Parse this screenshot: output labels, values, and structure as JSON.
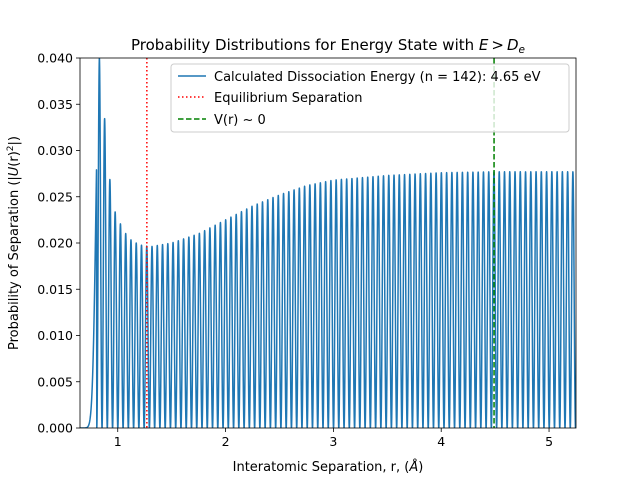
{
  "chart_data": {
    "type": "line",
    "title": "Probability Distributions for Energy State with E > De",
    "title_parts": {
      "prefix": "Probability Distributions for Energy State with ",
      "math_E": "E",
      "math_gt": ">",
      "math_D": "D",
      "math_sub": "e"
    },
    "xlabel": "Interatomic Separation, r, (Å)",
    "xlabel_parts": {
      "text": "Interatomic Separation, r, (",
      "unit": "Å",
      "close": ")"
    },
    "ylabel": "Probability of Separation (|Ψ(r)²|)",
    "ylabel_parts": {
      "text": "Probability of Separation (|",
      "psi": "U",
      "arg": "(r)",
      "sup": "2",
      "close": "|)"
    },
    "xlim": [
      0.65,
      5.25
    ],
    "ylim": [
      0.0,
      0.04
    ],
    "x_ticks": [
      1,
      2,
      3,
      4,
      5
    ],
    "y_ticks": [
      0.0,
      0.005,
      0.01,
      0.015,
      0.02,
      0.025,
      0.03,
      0.035,
      0.04
    ],
    "y_tick_labels": [
      "0.000",
      "0.005",
      "0.010",
      "0.015",
      "0.020",
      "0.025",
      "0.030",
      "0.035",
      "0.040"
    ],
    "grid": false,
    "legend_position": "upper-right",
    "series": [
      {
        "name": "Calculated Dissociation Energy (n = 142): 4.65 eV",
        "color": "#1f77b4",
        "style": "solid",
        "kind": "oscillating-probability",
        "first_peak": {
          "x": 0.83,
          "y": 0.04
        },
        "second_peak": {
          "x": 0.93,
          "y": 0.0265
        },
        "third_peak": {
          "x": 0.98,
          "y": 0.0231
        },
        "envelope": [
          [
            0.83,
            0.04
          ],
          [
            0.93,
            0.0265
          ],
          [
            0.98,
            0.0231
          ],
          [
            1.05,
            0.0215
          ],
          [
            1.1,
            0.0205
          ],
          [
            1.2,
            0.0198
          ],
          [
            1.3,
            0.0196
          ],
          [
            1.5,
            0.02
          ],
          [
            1.75,
            0.021
          ],
          [
            2.0,
            0.0225
          ],
          [
            2.25,
            0.024
          ],
          [
            2.5,
            0.0252
          ],
          [
            2.75,
            0.0262
          ],
          [
            3.0,
            0.0268
          ],
          [
            3.5,
            0.0273
          ],
          [
            4.0,
            0.0276
          ],
          [
            4.5,
            0.0277
          ],
          [
            5.25,
            0.0277
          ]
        ],
        "oscillations_after_first_peak": 142
      },
      {
        "name": "Equilibrium Separation",
        "color": "#ff0000",
        "style": "dotted",
        "kind": "vline",
        "x": 1.27
      },
      {
        "name": "V(r) ~ 0",
        "color": "#008000",
        "style": "dashed",
        "kind": "vline",
        "x": 4.49
      }
    ]
  }
}
